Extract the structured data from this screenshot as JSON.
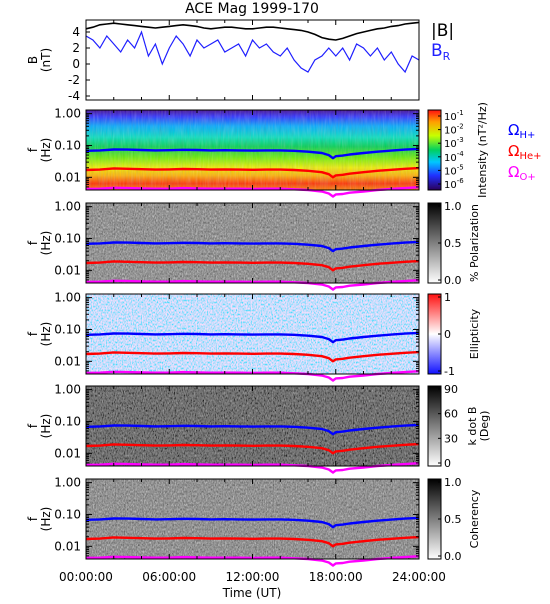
{
  "chart_data": {
    "type": "multi-panel",
    "title": "ACE Mag 1999-170",
    "xlabel": "Time (UT)",
    "x_tick_labels": [
      "00:00:00",
      "06:00:00",
      "12:00:00",
      "18:00:00",
      "24:00:00"
    ],
    "x_range_hours": [
      0,
      24
    ],
    "colors": {
      "B": "#000000",
      "BR": "#1f1fff",
      "H+": "#0000ff",
      "He+": "#ff0000",
      "O+": "#ff00ff"
    },
    "legend": {
      "b_mag": "|B|",
      "b_r": "B",
      "b_r_sub": "R",
      "omega": "Ω",
      "h_sub": "H+",
      "he_sub": "He+",
      "o_sub": "O+"
    },
    "panels": [
      {
        "id": "b-field",
        "type": "line",
        "ylabel_lines": [
          "B",
          "(nT)"
        ],
        "ylim": [
          -4.5,
          5.5
        ],
        "y_ticks": [
          4,
          2,
          0,
          -2,
          -4
        ],
        "y_tick_labels": [
          "4",
          "2",
          "0",
          "-2",
          "-4"
        ],
        "series": [
          {
            "key": "B",
            "x": [
              0,
              0.5,
              1,
              1.5,
              2,
              2.5,
              3,
              3.5,
              4,
              4.5,
              5,
              5.5,
              6,
              6.5,
              7,
              7.5,
              8,
              8.5,
              9,
              9.5,
              10,
              10.5,
              11,
              11.5,
              12,
              12.5,
              13,
              13.5,
              14,
              14.5,
              15,
              15.5,
              16,
              16.5,
              17,
              17.5,
              18,
              18.5,
              19,
              19.5,
              20,
              20.5,
              21,
              21.5,
              22,
              22.5,
              23,
              23.5,
              24
            ],
            "y": [
              4.4,
              4.6,
              4.9,
              5.0,
              5.1,
              5.0,
              4.9,
              4.8,
              4.7,
              4.6,
              4.5,
              4.6,
              4.7,
              4.8,
              4.9,
              4.8,
              4.7,
              4.5,
              4.4,
              4.5,
              4.6,
              4.6,
              4.5,
              4.4,
              4.4,
              4.5,
              4.6,
              4.6,
              4.5,
              4.4,
              4.3,
              4.2,
              4.0,
              3.7,
              3.3,
              3.1,
              3.0,
              3.2,
              3.5,
              3.8,
              4.0,
              4.2,
              4.4,
              4.5,
              4.7,
              4.8,
              5.0,
              5.1,
              5.2
            ]
          },
          {
            "key": "BR",
            "x": [
              0,
              0.5,
              1,
              1.5,
              2,
              2.5,
              3,
              3.5,
              4,
              4.5,
              5,
              5.5,
              6,
              6.5,
              7,
              7.5,
              8,
              8.5,
              9,
              9.5,
              10,
              10.5,
              11,
              11.5,
              12,
              12.5,
              13,
              13.5,
              14,
              14.5,
              15,
              15.5,
              16,
              16.5,
              17,
              17.5,
              18,
              18.5,
              19,
              19.5,
              20,
              20.5,
              21,
              21.5,
              22,
              22.5,
              23,
              23.5,
              24
            ],
            "y": [
              3.5,
              3.0,
              2.0,
              3.5,
              2.5,
              1.5,
              3.0,
              2.0,
              4.0,
              1.0,
              2.5,
              0.0,
              2.0,
              3.5,
              2.5,
              1.0,
              3.0,
              2.0,
              2.5,
              3.0,
              1.5,
              2.0,
              2.5,
              1.0,
              3.0,
              2.0,
              2.5,
              1.5,
              1.0,
              2.0,
              0.5,
              -0.5,
              -1.0,
              0.5,
              1.0,
              2.0,
              1.0,
              2.0,
              0.5,
              2.5,
              2.0,
              1.0,
              2.0,
              0.5,
              1.5,
              0.0,
              -1.0,
              1.0,
              0.5
            ]
          }
        ]
      },
      {
        "id": "intensity",
        "type": "heatmap",
        "ylabel_lines": [
          "f",
          "(Hz)"
        ],
        "y_tick_labels": [
          "1.00",
          "0.10",
          "0.01"
        ],
        "colorbar_label": "Intensity (nT²/Hz)",
        "colorbar_tick_labels": [
          "10",
          "10",
          "10",
          "10",
          "10",
          "10"
        ],
        "colorbar_tick_exponents": [
          "-1",
          "-2",
          "-3",
          "-4",
          "-5",
          "-6"
        ],
        "colorscale": "rainbow"
      },
      {
        "id": "polarization",
        "type": "heatmap",
        "ylabel_lines": [
          "f",
          "(Hz)"
        ],
        "y_tick_labels": [
          "1.00",
          "0.10",
          "0.01"
        ],
        "colorbar_label": "% Polarization",
        "colorbar_tick_labels": [
          "1.0",
          "0.5",
          "0.0"
        ],
        "colorscale": "gray"
      },
      {
        "id": "ellipticity",
        "type": "heatmap",
        "ylabel_lines": [
          "f",
          "(Hz)"
        ],
        "y_tick_labels": [
          "1.00",
          "0.10",
          "0.01"
        ],
        "colorbar_label": "Ellipticity",
        "colorbar_tick_labels": [
          "1",
          "0",
          "-1"
        ],
        "colorscale": "bwr"
      },
      {
        "id": "kdotb",
        "type": "heatmap",
        "ylabel_lines": [
          "f",
          "(Hz)"
        ],
        "y_tick_labels": [
          "1.00",
          "0.10",
          "0.01"
        ],
        "colorbar_label": "k dot B (Deg)",
        "colorbar_label_lines": [
          "k dot B",
          "(Deg)"
        ],
        "colorbar_tick_labels": [
          "90",
          "60",
          "30",
          "0"
        ],
        "colorscale": "gray"
      },
      {
        "id": "coherency",
        "type": "heatmap",
        "ylabel_lines": [
          "f",
          "(Hz)"
        ],
        "y_tick_labels": [
          "1.00",
          "0.10",
          "0.01"
        ],
        "colorbar_label": "Coherency",
        "colorbar_tick_labels": [
          "1.0",
          "0.5",
          "0.0"
        ],
        "colorscale": "gray"
      }
    ],
    "gyrofrequency_lines": [
      {
        "key": "H+",
        "x": [
          0,
          1,
          2,
          3,
          4,
          5,
          6,
          7,
          8,
          9,
          10,
          11,
          12,
          13,
          14,
          15,
          16,
          17,
          17.5,
          17.8,
          18,
          18.5,
          19,
          20,
          21,
          22,
          23,
          24
        ],
        "f": [
          0.068,
          0.07,
          0.075,
          0.074,
          0.072,
          0.07,
          0.071,
          0.073,
          0.072,
          0.07,
          0.071,
          0.07,
          0.069,
          0.07,
          0.07,
          0.068,
          0.064,
          0.058,
          0.05,
          0.04,
          0.046,
          0.048,
          0.052,
          0.058,
          0.064,
          0.069,
          0.074,
          0.078
        ]
      },
      {
        "key": "He+",
        "x": [
          0,
          1,
          2,
          3,
          4,
          5,
          6,
          7,
          8,
          9,
          10,
          11,
          12,
          13,
          14,
          15,
          16,
          17,
          17.5,
          17.8,
          18,
          18.5,
          19,
          20,
          21,
          22,
          23,
          24
        ],
        "f": [
          0.017,
          0.0175,
          0.019,
          0.0185,
          0.018,
          0.0175,
          0.0178,
          0.0183,
          0.018,
          0.0175,
          0.0178,
          0.0175,
          0.0172,
          0.0175,
          0.0175,
          0.017,
          0.016,
          0.0145,
          0.0125,
          0.01,
          0.0115,
          0.012,
          0.013,
          0.0145,
          0.016,
          0.0172,
          0.0185,
          0.0195
        ]
      },
      {
        "key": "O+",
        "x": [
          0,
          1,
          2,
          3,
          4,
          5,
          6,
          7,
          8,
          9,
          10,
          11,
          12,
          13,
          14,
          15,
          16,
          17,
          17.5,
          17.8,
          18,
          18.5,
          19,
          20,
          21,
          22,
          23,
          24
        ],
        "f": [
          0.0043,
          0.0044,
          0.0047,
          0.0046,
          0.0045,
          0.0044,
          0.0044,
          0.0046,
          0.0045,
          0.0044,
          0.0044,
          0.0044,
          0.0043,
          0.0044,
          0.0044,
          0.0042,
          0.004,
          0.0036,
          0.0031,
          0.0025,
          0.0029,
          0.003,
          0.0033,
          0.0036,
          0.004,
          0.0043,
          0.0046,
          0.0049
        ]
      }
    ]
  }
}
